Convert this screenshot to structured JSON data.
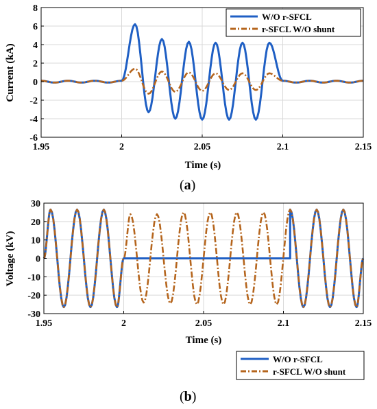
{
  "legend_labels": [
    "W/O r-SFCL",
    "r-SFCL W/O shunt"
  ],
  "colors": {
    "blue": "#1f5fc4",
    "orange": "#b5651d",
    "green": "#3a9a3a",
    "axis": "#000000"
  },
  "caption_a": {
    "open": "(",
    "letter": "a",
    "close": ")"
  },
  "caption_b": {
    "open": "(",
    "letter": "b",
    "close": ")"
  },
  "chart_data": [
    {
      "type": "line",
      "title": "",
      "xlabel": "Time (s)",
      "ylabel": "Current (kA)",
      "xlim": [
        1.95,
        2.15
      ],
      "ylim": [
        -6,
        8
      ],
      "xticks": [
        "1.95",
        "2",
        "2.05",
        "2.1",
        "2.15"
      ],
      "yticks": [
        "-6",
        "-4",
        "-2",
        "0",
        "2",
        "4",
        "6",
        "8"
      ],
      "grid": true,
      "legend_position": "top-right",
      "series": [
        {
          "name": "W/O r-SFCL",
          "x": [
            1.95,
            1.9583,
            1.9667,
            1.975,
            1.9833,
            1.9917,
            2.0,
            2.0083,
            2.0167,
            2.025,
            2.0333,
            2.0417,
            2.05,
            2.0583,
            2.0667,
            2.075,
            2.0833,
            2.0917,
            2.1,
            2.1083,
            2.1167,
            2.125,
            2.1333,
            2.1417,
            2.15
          ],
          "y": [
            0.1,
            -0.1,
            0.1,
            -0.1,
            0.1,
            -0.1,
            0.1,
            6.2,
            -3.3,
            4.6,
            -4.0,
            4.3,
            -4.1,
            4.2,
            -4.1,
            4.2,
            -4.1,
            4.2,
            0.1,
            -0.1,
            0.1,
            -0.1,
            0.1,
            -0.1,
            0.1
          ]
        },
        {
          "name": "r-SFCL W/O shunt",
          "x": [
            1.95,
            1.9583,
            1.9667,
            1.975,
            1.9833,
            1.9917,
            2.0,
            2.0083,
            2.0167,
            2.025,
            2.0333,
            2.0417,
            2.05,
            2.0583,
            2.0667,
            2.075,
            2.0833,
            2.0917,
            2.1,
            2.1083,
            2.1167,
            2.125,
            2.1333,
            2.1417,
            2.15
          ],
          "y": [
            0.1,
            -0.1,
            0.1,
            -0.1,
            0.1,
            -0.1,
            0.1,
            1.4,
            -1.3,
            1.1,
            -1.1,
            1.0,
            -1.0,
            0.9,
            -0.9,
            0.9,
            -0.9,
            0.9,
            0.1,
            -0.1,
            0.1,
            -0.1,
            0.1,
            -0.1,
            0.1
          ]
        }
      ]
    },
    {
      "type": "line",
      "title": "",
      "xlabel": "Time (s)",
      "ylabel": "Voltage (kV)",
      "xlim": [
        1.95,
        2.15
      ],
      "ylim": [
        -30,
        30
      ],
      "xticks": [
        "1.95",
        "2",
        "2.05",
        "2.1",
        "2.15"
      ],
      "yticks": [
        "-30",
        "-20",
        "-10",
        "0",
        "10",
        "20",
        "30"
      ],
      "grid": true,
      "legend_position": "below-right",
      "series": [
        {
          "name": "W/O r-SFCL",
          "x": [
            1.95,
            1.9542,
            1.9625,
            1.9708,
            1.9792,
            1.9875,
            1.9958,
            2.0,
            2.1042,
            2.1042,
            2.1125,
            2.1208,
            2.1292,
            2.1375,
            2.1458,
            2.15
          ],
          "y": [
            0,
            26.5,
            -26.5,
            26.5,
            -26.5,
            26.5,
            -26.5,
            0,
            0,
            26.5,
            -26.5,
            26.5,
            -26.5,
            26.5,
            -26.5,
            0
          ]
        },
        {
          "name": "r-SFCL W/O shunt",
          "x": [
            1.95,
            1.9542,
            1.9625,
            1.9708,
            1.9792,
            1.9875,
            1.9958,
            2.0,
            2.0042,
            2.0125,
            2.0208,
            2.0292,
            2.0375,
            2.0458,
            2.0542,
            2.0625,
            2.0708,
            2.0792,
            2.0875,
            2.0958,
            2.1042,
            2.1125,
            2.1208,
            2.1292,
            2.1375,
            2.1458,
            2.15
          ],
          "y": [
            0,
            26.5,
            -26.5,
            26.5,
            -26.5,
            26.5,
            -26.5,
            0,
            24,
            -24,
            24,
            -24.5,
            25,
            -25,
            25,
            -25,
            25,
            -25,
            25,
            -25,
            26.5,
            -26.5,
            26.5,
            -26.5,
            26.5,
            -26.5,
            0
          ]
        }
      ]
    }
  ]
}
